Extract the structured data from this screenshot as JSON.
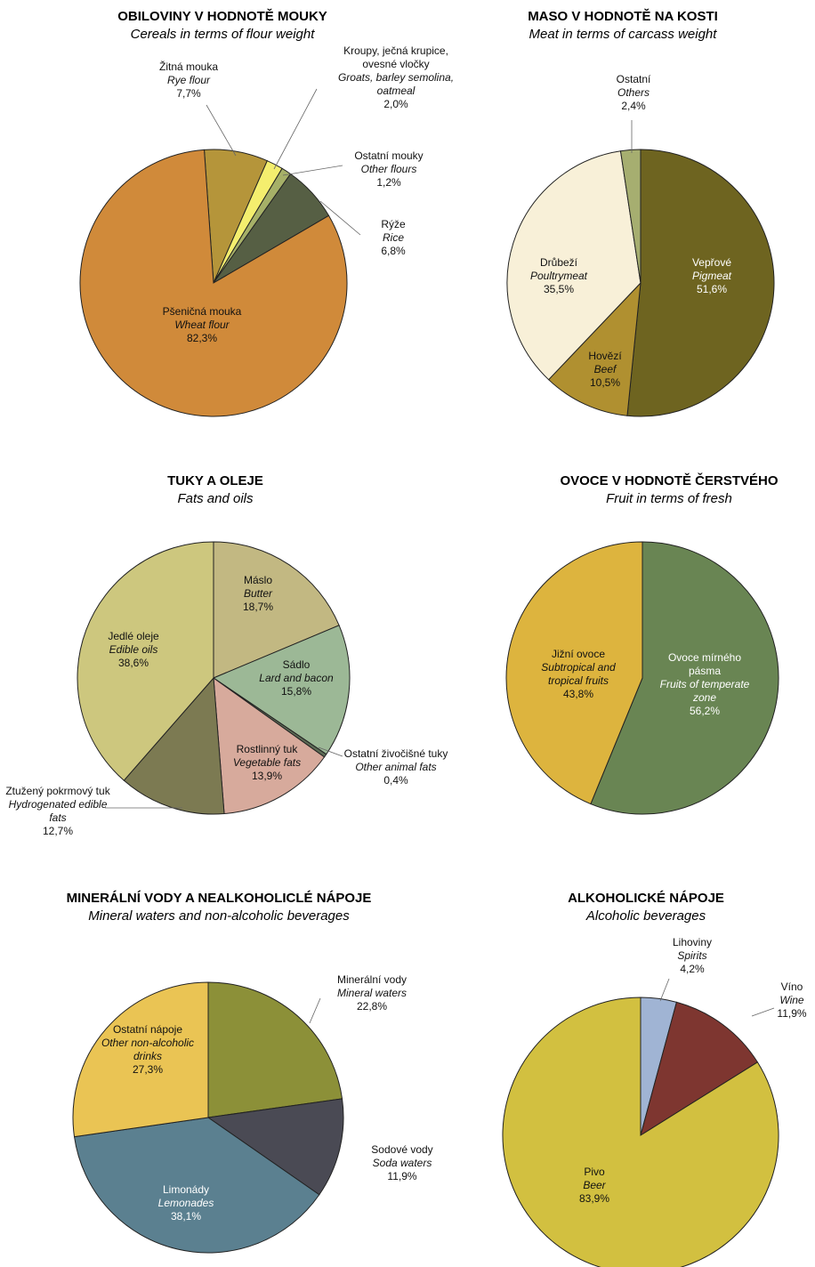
{
  "chart_data": [
    {
      "type": "pie",
      "title": "OBILOVINY V HODNOTĚ MOUKY",
      "subtitle": "Cereals in terms of flour weight",
      "categories": [
        "Žitná mouka",
        "Kroupy, ječná krupice, ovesné vločky",
        "Ostatní mouky",
        "Rýže",
        "Pšeničná mouka"
      ],
      "categories_en": [
        "Rye flour",
        "Groats, barley semolina, oatmeal",
        "Other flours",
        "Rice",
        "Wheat flour"
      ],
      "values": [
        7.7,
        2.0,
        1.2,
        6.8,
        82.3
      ],
      "value_labels": [
        "7,7%",
        "2,0%",
        "1,2%",
        "6,8%",
        "82,3%"
      ],
      "colors": [
        "#b5953a",
        "#f4ee6e",
        "#a6b068",
        "#565f44",
        "#d08a3a"
      ]
    },
    {
      "type": "pie",
      "title": "MASO V HODNOTĚ NA KOSTI",
      "subtitle": "Meat in terms of carcass weight",
      "categories": [
        "Vepřové",
        "Hovězí",
        "Drůbeží",
        "Ostatní"
      ],
      "categories_en": [
        "Pigmeat",
        "Beef",
        "Poultrymeat",
        "Others"
      ],
      "values": [
        51.6,
        10.5,
        35.5,
        2.4
      ],
      "value_labels": [
        "51,6%",
        "10,5%",
        "35,5%",
        "2,4%"
      ],
      "colors": [
        "#6e6420",
        "#b09030",
        "#f8f0d8",
        "#a6ae70"
      ]
    },
    {
      "type": "pie",
      "title": "TUKY A OLEJE",
      "subtitle": "Fats and oils",
      "categories": [
        "Máslo",
        "Sádlo",
        "Ostatní živočišné tuky",
        "Rostlinný tuk",
        "Ztužený pokrmový tuk",
        "Jedlé oleje"
      ],
      "categories_en": [
        "Butter",
        "Lard and bacon",
        "Other animal fats",
        "Vegetable fats",
        "Hydrogenated edible fats",
        "Edible oils"
      ],
      "values": [
        18.7,
        15.8,
        0.4,
        13.9,
        12.7,
        38.6
      ],
      "value_labels": [
        "18,7%",
        "15,8%",
        "0,4%",
        "13,9%",
        "12,7%",
        "38,6%"
      ],
      "colors": [
        "#c2b882",
        "#9cb896",
        "#5d6b55",
        "#d7aa9c",
        "#7c7a52",
        "#cdc77e"
      ]
    },
    {
      "type": "pie",
      "title": "OVOCE V HODNOTĚ ČERSTVÉHO",
      "subtitle": "Fruit in terms of fresh",
      "categories": [
        "Ovoce mírného pásma",
        "Jižní ovoce"
      ],
      "categories_en": [
        "Fruits of temperate zone",
        "Subtropical and tropical fruits"
      ],
      "values": [
        56.2,
        43.8
      ],
      "value_labels": [
        "56,2%",
        "43,8%"
      ],
      "colors": [
        "#698553",
        "#ddb43e"
      ]
    },
    {
      "type": "pie",
      "title": "MINERÁLNÍ VODY A NEALKOHOLICLÉ NÁPOJE",
      "subtitle": "Mineral waters and non-alcoholic beverages",
      "categories": [
        "Minerální vody",
        "Sodové vody",
        "Limonády",
        "Ostatní nápoje"
      ],
      "categories_en": [
        "Mineral waters",
        "Soda waters",
        "Lemonades",
        "Other non-alcoholic drinks"
      ],
      "values": [
        22.8,
        11.9,
        38.1,
        27.3
      ],
      "value_labels": [
        "22,8%",
        "11,9%",
        "38,1%",
        "27,3%"
      ],
      "colors": [
        "#8c9038",
        "#4a4a54",
        "#5b8090",
        "#eac454"
      ]
    },
    {
      "type": "pie",
      "title": "ALKOHOLICKÉ NÁPOJE",
      "subtitle": "Alcoholic beverages",
      "categories": [
        "Lihoviny",
        "Víno",
        "Pivo"
      ],
      "categories_en": [
        "Spirits",
        "Wine",
        "Beer"
      ],
      "values": [
        4.2,
        11.9,
        83.9
      ],
      "value_labels": [
        "4,2%",
        "11,9%",
        "83,9%"
      ],
      "colors": [
        "#a0b4d4",
        "#7e3630",
        "#d2c040"
      ]
    }
  ]
}
